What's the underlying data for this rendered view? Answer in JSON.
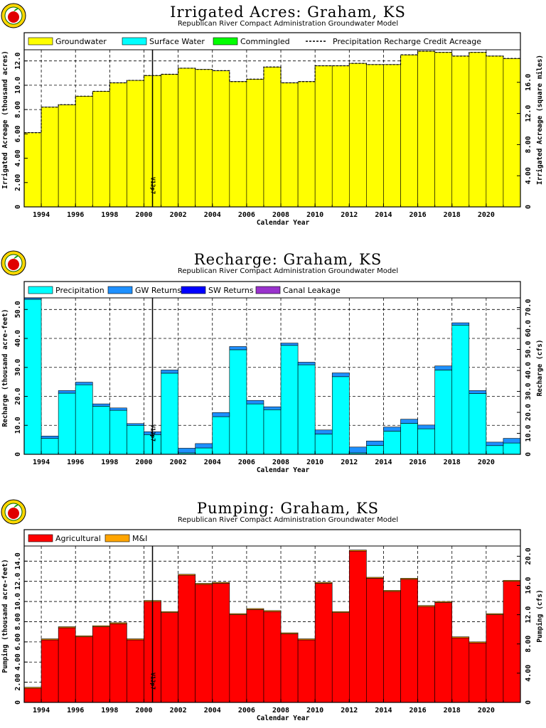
{
  "chart_data": [
    {
      "type": "bar",
      "title": "Irrigated  Acres:  Graham,  KS",
      "subtitle": "Republican  River  Compact  Administration  Groundwater  Model",
      "xlabel": "Calendar  Year",
      "ylabel": "Irrigated  Acreage  (thousand  acres)",
      "y2label": "Irrigated  Acreage  (square  miles)",
      "xlim": [
        1993,
        2022
      ],
      "ylim": [
        0,
        12.8
      ],
      "y2lim": [
        0,
        20
      ],
      "yticks": [
        "0",
        "2.00",
        "4.00",
        "6.00",
        "8.00",
        "10.0",
        "12.0"
      ],
      "y2ticks": [
        "0",
        "4.00",
        "8.00",
        "12.0",
        "16.0"
      ],
      "xticks": [
        "1994",
        "1996",
        "1998",
        "2000",
        "2002",
        "2004",
        "2006",
        "2008",
        "2010",
        "2012",
        "2014",
        "2016",
        "2018",
        "2020"
      ],
      "legend": [
        "Groundwater",
        "Surface  Water",
        "Commingled",
        "Precipitation  Recharge  Credit  Acreage"
      ],
      "legend_colors": [
        "#ffff00",
        "#00ffff",
        "#00ff00",
        "#000000"
      ],
      "marker": {
        "x": 2000.5,
        "label": "V12p7"
      },
      "x": [
        1993,
        1994,
        1995,
        1996,
        1997,
        1998,
        1999,
        2000,
        2001,
        2002,
        2003,
        2004,
        2005,
        2006,
        2007,
        2008,
        2009,
        2010,
        2011,
        2012,
        2013,
        2014,
        2015,
        2016,
        2017,
        2018,
        2019,
        2020,
        2021
      ],
      "series": [
        {
          "name": "Groundwater",
          "color": "#ffff00",
          "values": [
            6.1,
            8.2,
            8.4,
            9.1,
            9.5,
            10.2,
            10.4,
            10.8,
            10.9,
            11.4,
            11.3,
            11.2,
            10.3,
            10.5,
            11.5,
            10.2,
            10.3,
            11.6,
            11.6,
            11.8,
            11.7,
            11.7,
            12.5,
            12.8,
            12.7,
            12.4,
            12.7,
            12.4,
            12.2
          ]
        },
        {
          "name": "Surface  Water",
          "color": "#00ffff",
          "values": [
            0,
            0,
            0,
            0,
            0,
            0,
            0,
            0,
            0,
            0,
            0,
            0,
            0,
            0,
            0,
            0,
            0,
            0,
            0,
            0,
            0,
            0,
            0,
            0,
            0,
            0,
            0,
            0,
            0
          ]
        },
        {
          "name": "Commingled",
          "color": "#00ff00",
          "values": [
            0,
            0,
            0,
            0,
            0,
            0,
            0,
            0,
            0,
            0,
            0,
            0,
            0,
            0,
            0,
            0,
            0,
            0,
            0,
            0,
            0,
            0,
            0,
            0,
            0,
            0,
            0,
            0,
            0
          ]
        },
        {
          "name": "Precipitation  Recharge  Credit  Acreage",
          "color": "#000000",
          "line": true,
          "values": [
            6.1,
            8.2,
            8.4,
            9.1,
            9.5,
            10.2,
            10.4,
            10.8,
            10.9,
            11.4,
            11.3,
            11.2,
            10.3,
            10.5,
            11.5,
            10.2,
            10.3,
            11.6,
            11.6,
            11.8,
            11.7,
            11.7,
            12.5,
            12.8,
            12.7,
            12.4,
            12.7,
            12.4,
            12.2
          ]
        }
      ]
    },
    {
      "type": "bar",
      "title": "Recharge:  Graham,  KS",
      "subtitle": "Republican  River  Compact  Administration  Groundwater  Model",
      "xlabel": "Calendar  Year",
      "ylabel": "Recharge  (thousand  acre-feet)",
      "y2label": "Recharge  (cfs)",
      "xlim": [
        1993,
        2022
      ],
      "ylim": [
        0,
        54
      ],
      "y2lim": [
        0,
        74.6
      ],
      "yticks": [
        "0",
        "10.0",
        "20.0",
        "30.0",
        "40.0",
        "50.0"
      ],
      "y2ticks": [
        "0",
        "10.0",
        "20.0",
        "30.0",
        "40.0",
        "50.0",
        "60.0",
        "70.0"
      ],
      "xticks": [
        "1994",
        "1996",
        "1998",
        "2000",
        "2002",
        "2004",
        "2006",
        "2008",
        "2010",
        "2012",
        "2014",
        "2016",
        "2018",
        "2020"
      ],
      "legend": [
        "Precipitation",
        "GW  Returns",
        "SW  Returns",
        "Canal  Leakage"
      ],
      "legend_colors": [
        "#00ffff",
        "#1e90ff",
        "#0000ff",
        "#9932cc"
      ],
      "marker": {
        "x": 2000.5,
        "label": "V12p7"
      },
      "x": [
        1993,
        1994,
        1995,
        1996,
        1997,
        1998,
        1999,
        2000,
        2001,
        2002,
        2003,
        2004,
        2005,
        2006,
        2007,
        2008,
        2009,
        2010,
        2011,
        2012,
        2013,
        2014,
        2015,
        2016,
        2017,
        2018,
        2019,
        2020,
        2021
      ],
      "series": [
        {
          "name": "Precipitation",
          "color": "#00ffff",
          "values": [
            53.5,
            5.5,
            21.1,
            24.0,
            16.6,
            15.2,
            10.0,
            6.8,
            28.0,
            0.5,
            2.2,
            13.0,
            36.1,
            17.4,
            15.4,
            37.6,
            30.9,
            7.0,
            26.8,
            0.5,
            3.1,
            8.0,
            10.7,
            8.8,
            29.1,
            44.6,
            21.0,
            3.0,
            3.9
          ]
        },
        {
          "name": "GW  Returns",
          "color": "#1e90ff",
          "values": [
            0.5,
            0.8,
            0.9,
            0.9,
            0.8,
            0.8,
            0.6,
            1.0,
            1.1,
            1.6,
            1.5,
            1.4,
            1.1,
            1.2,
            1.0,
            0.8,
            0.9,
            1.4,
            1.3,
            2.0,
            1.5,
            1.4,
            1.4,
            1.3,
            1.4,
            0.8,
            1.0,
            1.2,
            1.6
          ]
        },
        {
          "name": "SW  Returns",
          "color": "#0000ff",
          "values": [
            0,
            0,
            0,
            0,
            0,
            0,
            0,
            0,
            0,
            0,
            0,
            0,
            0,
            0,
            0,
            0,
            0,
            0,
            0,
            0,
            0,
            0,
            0,
            0,
            0,
            0,
            0,
            0,
            0
          ]
        },
        {
          "name": "Canal  Leakage",
          "color": "#9932cc",
          "values": [
            0,
            0,
            0,
            0,
            0,
            0,
            0,
            0,
            0,
            0,
            0,
            0,
            0,
            0,
            0,
            0,
            0,
            0,
            0,
            0,
            0,
            0,
            0,
            0,
            0,
            0,
            0,
            0,
            0
          ]
        }
      ]
    },
    {
      "type": "bar",
      "title": "Pumping:  Graham,  KS",
      "subtitle": "Republican  River  Compact  Administration  Groundwater  Model",
      "xlabel": "Calendar  Year",
      "ylabel": "Pumping  (thousand  acre-feet)",
      "y2label": "Pumping  (cfs)",
      "xlim": [
        1993,
        2022
      ],
      "ylim": [
        0,
        15.5
      ],
      "y2lim": [
        0,
        21.4
      ],
      "yticks": [
        "0",
        "2.00",
        "4.00",
        "6.00",
        "8.00",
        "10.0",
        "12.0",
        "14.0"
      ],
      "y2ticks": [
        "0",
        "4.00",
        "8.00",
        "12.0",
        "16.0",
        "20.0"
      ],
      "xticks": [
        "1994",
        "1996",
        "1998",
        "2000",
        "2002",
        "2004",
        "2006",
        "2008",
        "2010",
        "2012",
        "2014",
        "2016",
        "2018",
        "2020"
      ],
      "legend": [
        "Agricultural",
        "M&I"
      ],
      "legend_colors": [
        "#ff0000",
        "#ffa500"
      ],
      "marker": {
        "x": 2000.5,
        "label": "V12p7"
      },
      "x": [
        1993,
        1994,
        1995,
        1996,
        1997,
        1998,
        1999,
        2000,
        2001,
        2002,
        2003,
        2004,
        2005,
        2006,
        2007,
        2008,
        2009,
        2010,
        2011,
        2012,
        2013,
        2014,
        2015,
        2016,
        2017,
        2018,
        2019,
        2020,
        2021
      ],
      "series": [
        {
          "name": "Agricultural",
          "color": "#ff0000",
          "values": [
            1.4,
            6.2,
            7.4,
            6.5,
            7.5,
            7.8,
            6.2,
            10.0,
            8.9,
            12.6,
            11.7,
            11.8,
            8.7,
            9.2,
            9.0,
            6.8,
            6.2,
            11.8,
            8.9,
            15.0,
            12.3,
            11.0,
            12.2,
            9.5,
            9.9,
            6.4,
            5.9,
            8.7,
            12.0
          ]
        },
        {
          "name": "M&I",
          "color": "#ffa500",
          "values": [
            0.1,
            0.1,
            0.1,
            0.1,
            0.1,
            0.1,
            0.1,
            0.1,
            0.1,
            0.1,
            0.1,
            0.1,
            0.1,
            0.1,
            0.1,
            0.1,
            0.1,
            0.1,
            0.1,
            0.1,
            0.1,
            0.1,
            0.1,
            0.1,
            0.1,
            0.1,
            0.1,
            0.1,
            0.1
          ]
        }
      ]
    }
  ]
}
